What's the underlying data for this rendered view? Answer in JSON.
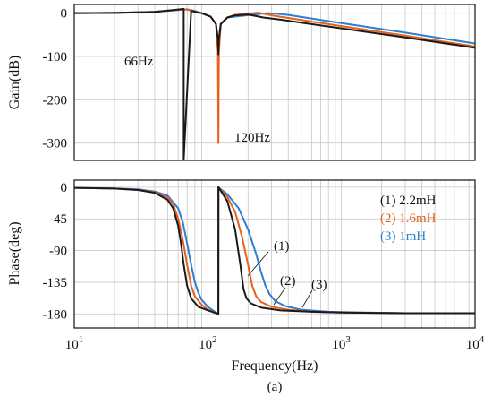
{
  "figure_label": "(a)",
  "chart_data": [
    {
      "type": "line",
      "xlabel": "",
      "ylabel": "Gain(dB)",
      "xscale": "log",
      "xlim": [
        10,
        10000
      ],
      "ylim": [
        -340,
        20
      ],
      "yticks": [
        0,
        -100,
        -200,
        -300
      ],
      "ytick_labels": [
        "0",
        "-100",
        "-200",
        "-300"
      ],
      "grid": true,
      "annotations": [
        {
          "text": "66Hz",
          "x": 66,
          "y": -100
        },
        {
          "text": "120Hz",
          "x": 120,
          "y": -290
        }
      ],
      "series": [
        {
          "name": "(1) 2.2mH",
          "color": "#1a1a1a",
          "x": [
            10,
            20,
            40,
            55,
            62,
            66,
            66,
            75,
            90,
            105,
            115,
            119,
            120,
            121,
            125,
            140,
            160,
            180,
            200,
            260,
            350,
            500,
            1000,
            3000,
            10000
          ],
          "y": [
            0,
            0.5,
            3,
            7,
            9,
            10,
            -338,
            5,
            0,
            -8,
            -25,
            -60,
            -95,
            -60,
            -25,
            -10,
            -5,
            -4,
            -3,
            -10,
            -15,
            -22,
            -35,
            -56,
            -80
          ]
        },
        {
          "name": "(2) 1.6mH",
          "color": "#e8601c",
          "x": [
            10,
            20,
            40,
            60,
            66,
            72,
            90,
            105,
            115,
            119,
            120,
            121,
            125,
            140,
            160,
            200,
            240,
            300,
            400,
            1000,
            3000,
            10000
          ],
          "y": [
            0,
            0.5,
            3,
            8,
            9,
            7,
            0,
            -8,
            -25,
            -90,
            -300,
            -90,
            -25,
            -10,
            -4,
            -1,
            1,
            -5,
            -11,
            -30,
            -52,
            -77
          ]
        },
        {
          "name": "(3) 1mH",
          "color": "#2f7fd0",
          "x": [
            10,
            20,
            40,
            60,
            70,
            80,
            90,
            105,
            115,
            119,
            120,
            121,
            125,
            140,
            180,
            240,
            280,
            320,
            400,
            1000,
            3000,
            10000
          ],
          "y": [
            0,
            0.5,
            3,
            7,
            9,
            5,
            0,
            -8,
            -25,
            -60,
            -95,
            -60,
            -25,
            -10,
            -6,
            -2,
            0,
            -1,
            -4,
            -23,
            -45,
            -70
          ]
        }
      ]
    },
    {
      "type": "line",
      "xlabel": "Frequency(Hz)",
      "ylabel": "Phase(deg)",
      "xscale": "log",
      "xlim": [
        10,
        10000
      ],
      "ylim": [
        -200,
        10
      ],
      "xticks": [
        10,
        100,
        1000,
        10000
      ],
      "xtick_labels": [
        [
          "10",
          "1"
        ],
        [
          "10",
          "2"
        ],
        [
          "10",
          "3"
        ],
        [
          "10",
          "4"
        ]
      ],
      "yticks": [
        0,
        -45,
        -90,
        -135,
        -180
      ],
      "ytick_labels": [
        "0",
        "-45",
        "-90",
        "-135",
        "-180"
      ],
      "grid": true,
      "legend_position": "top-right",
      "curve_labels": [
        {
          "text": "(1)",
          "series": 0,
          "x": 180,
          "y": -115
        },
        {
          "text": "(2)",
          "series": 1,
          "x": 235,
          "y": -155
        },
        {
          "text": "(3)",
          "series": 2,
          "x": 300,
          "y": -160
        }
      ],
      "series": [
        {
          "name": "(1) 2.2mH",
          "color": "#1a1a1a",
          "x": [
            10,
            20,
            30,
            40,
            50,
            55,
            60,
            63,
            66,
            70,
            75,
            85,
            100,
            119.9,
            120,
            125,
            140,
            160,
            175,
            185,
            195,
            210,
            250,
            350,
            600,
            1000,
            3000,
            10000
          ],
          "y": [
            -1,
            -2,
            -4,
            -8,
            -18,
            -30,
            -55,
            -80,
            -110,
            -140,
            -158,
            -170,
            -175,
            -180,
            0,
            -5,
            -20,
            -60,
            -110,
            -145,
            -158,
            -165,
            -171,
            -175,
            -177,
            -178,
            -179,
            -179
          ]
        },
        {
          "name": "(2) 1.6mH",
          "color": "#e8601c",
          "x": [
            10,
            20,
            30,
            40,
            50,
            55,
            60,
            65,
            70,
            75,
            80,
            90,
            100,
            119.9,
            120,
            125,
            140,
            160,
            180,
            200,
            215,
            230,
            250,
            300,
            400,
            600,
            1000,
            3000,
            10000
          ],
          "y": [
            -1,
            -2,
            -4,
            -7,
            -15,
            -24,
            -45,
            -75,
            -110,
            -140,
            -155,
            -167,
            -174,
            -180,
            0,
            -4,
            -14,
            -35,
            -70,
            -110,
            -140,
            -155,
            -163,
            -170,
            -174,
            -177,
            -178,
            -179,
            -179
          ]
        },
        {
          "name": "(3) 1mH",
          "color": "#2f7fd0",
          "x": [
            10,
            20,
            30,
            40,
            50,
            60,
            65,
            70,
            75,
            80,
            85,
            90,
            100,
            119.9,
            120,
            125,
            140,
            170,
            200,
            230,
            250,
            270,
            290,
            320,
            380,
            500,
            800,
            1500,
            3000,
            10000
          ],
          "y": [
            -1,
            -2,
            -3,
            -6,
            -12,
            -30,
            -50,
            -80,
            -110,
            -135,
            -150,
            -160,
            -170,
            -180,
            0,
            -3,
            -10,
            -30,
            -60,
            -95,
            -120,
            -140,
            -152,
            -162,
            -169,
            -174,
            -177,
            -178,
            -179,
            -179
          ]
        }
      ]
    }
  ]
}
